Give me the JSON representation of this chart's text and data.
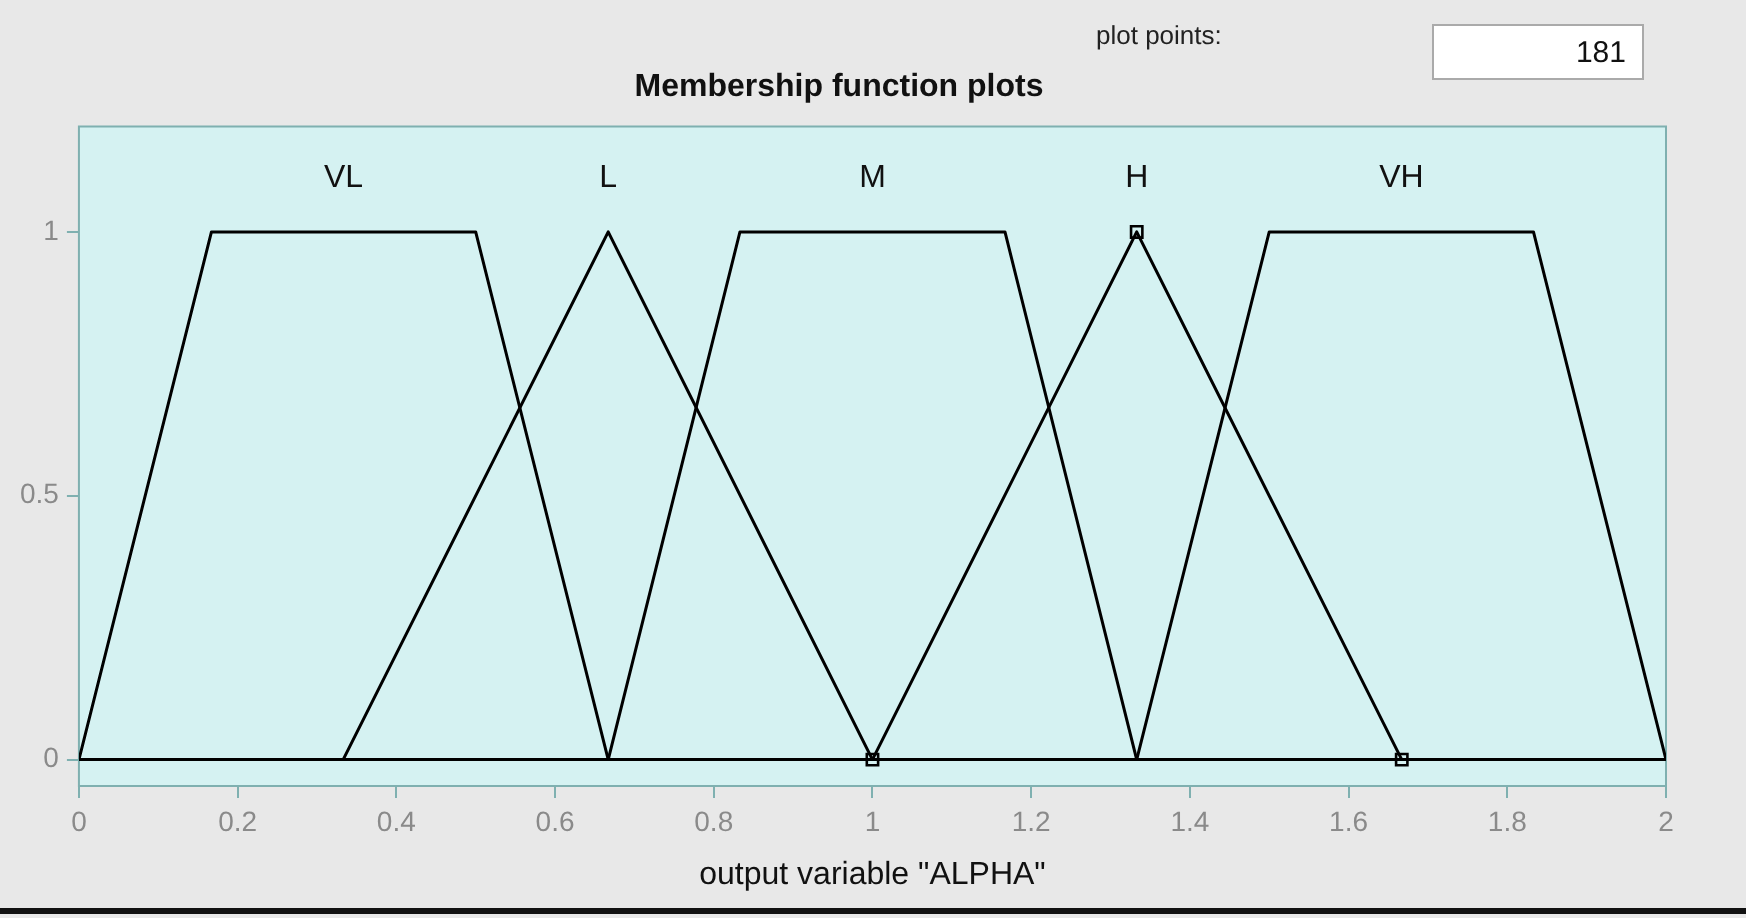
{
  "chart_data": {
    "type": "line",
    "title": "Membership function plots",
    "xlabel": "output variable \"ALPHA\"",
    "annotations": [
      "plot points:",
      "181"
    ],
    "xlim": [
      0,
      2
    ],
    "xticks": [
      0,
      0.2,
      0.4,
      0.6,
      0.8,
      1,
      1.2,
      1.4,
      1.6,
      1.8,
      2
    ],
    "ylim": [
      -0.05,
      1.2
    ],
    "yticks": [
      0,
      0.5,
      1
    ],
    "grid": false,
    "legend": false,
    "marker": "none",
    "line_style": "solid",
    "series": [
      {
        "name": "VL",
        "color": "#000000",
        "x": [
          0,
          0.167,
          0.5,
          0.667,
          2
        ],
        "values": [
          0,
          1,
          1,
          0,
          0
        ]
      },
      {
        "name": "L",
        "color": "#000000",
        "x": [
          0,
          0.333,
          0.667,
          1,
          2
        ],
        "values": [
          0,
          0,
          1,
          0,
          0
        ]
      },
      {
        "name": "M",
        "color": "#000000",
        "x": [
          0,
          0.667,
          0.833,
          1.167,
          1.333,
          2
        ],
        "values": [
          0,
          0,
          1,
          1,
          0,
          0
        ]
      },
      {
        "name": "H",
        "color": "#000000",
        "x": [
          1,
          1.333,
          1.667
        ],
        "values": [
          0,
          1,
          0
        ],
        "marker": "square"
      },
      {
        "name": "VH",
        "color": "#000000",
        "x": [
          0,
          1.333,
          1.5,
          1.833,
          2
        ],
        "values": [
          0,
          0,
          1,
          1,
          0
        ]
      }
    ]
  }
}
